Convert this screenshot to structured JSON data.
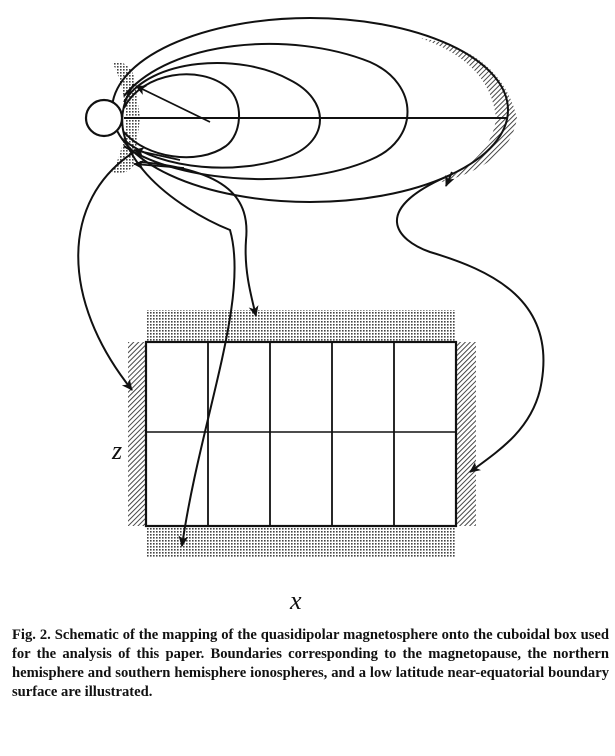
{
  "figure": {
    "axis_x_label": "x",
    "axis_z_label": "z"
  },
  "caption": {
    "text": "Fig. 2.  Schematic of the mapping of the quasidipolar magnetosphere onto the cuboidal box used for the analysis of this paper.  Boundaries corresponding to the magnetopause, the northern hemisphere and southern hemisphere ionospheres, and a low latitude near-equatorial boundary surface are illustrated."
  },
  "colors": {
    "ink": "#111111",
    "background": "#ffffff"
  }
}
